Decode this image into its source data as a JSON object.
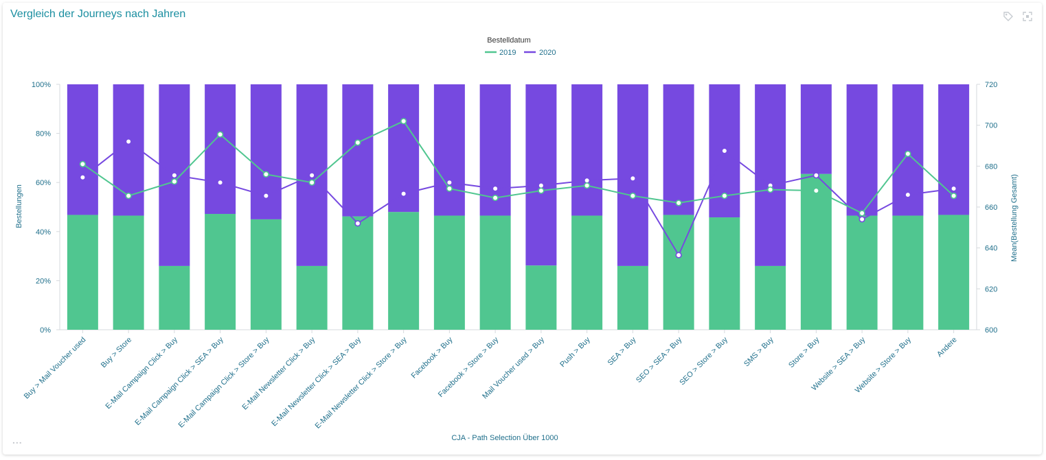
{
  "widget": {
    "title": "Vergleich der Journeys nach Jahren",
    "tag_icon": "tag-icon",
    "expand_icon": "expand-icon",
    "more_icon": "more-options-icon",
    "more_label": "..."
  },
  "chart_data": {
    "type": "bar",
    "stacked": true,
    "combo": "bar-line",
    "legend_title": "Bestelldatum",
    "legend_position": "top-center",
    "xlabel": "CJA - Path Selection Über 1000",
    "ylabel": "Bestellungen",
    "y2label": "Mean(Bestellung Gesamt)",
    "ylim": [
      0,
      100
    ],
    "y2lim": [
      600,
      720
    ],
    "yticks": [
      "0%",
      "20%",
      "40%",
      "60%",
      "80%",
      "100%"
    ],
    "y2ticks": [
      "600",
      "620",
      "640",
      "660",
      "680",
      "700",
      "720"
    ],
    "categories": [
      "Buy > Mail Voucher used",
      "Buy > Store",
      "E-Mail Campaign Click > Buy",
      "E-Mail Campaign Click > SEA > Buy",
      "E-Mail Campaign Click > Store > Buy",
      "E-Mail Newsletter Click > Buy",
      "E-Mail Newsletter Click > SEA > Buy",
      "E-Mail Newsletter Click > Store > Buy",
      "Facebook > Buy",
      "Facebook > Store > Buy",
      "Mail Voucher used > Buy",
      "Push > Buy",
      "SEA > Buy",
      "SEO > SEA > Buy",
      "SEO > Store > Buy",
      "SMS > Buy",
      "Store > Buy",
      "Website > SEA > Buy",
      "Website > Store > Buy",
      "Andere"
    ],
    "series": [
      {
        "name": "2019",
        "color": "#50c690",
        "bar_share": [
          46.8,
          46.5,
          26.0,
          47.2,
          45.0,
          26.0,
          46.2,
          48.0,
          46.5,
          46.5,
          26.2,
          46.5,
          26.0,
          46.8,
          45.8,
          26.0,
          63.5,
          46.5,
          46.5,
          46.8
        ],
        "mean": [
          681,
          665.5,
          672.5,
          695.5,
          676,
          672,
          691.5,
          702,
          669,
          664.5,
          668,
          670.5,
          665.5,
          662,
          665.5,
          668.5,
          668,
          657,
          686,
          665.5
        ]
      },
      {
        "name": "2020",
        "color": "#7649e0",
        "bar_share": [
          53.2,
          53.5,
          74.0,
          52.8,
          55.0,
          74.0,
          53.8,
          52.0,
          53.5,
          53.5,
          73.8,
          53.5,
          74.0,
          53.2,
          54.2,
          74.0,
          36.5,
          53.5,
          53.5,
          53.2
        ],
        "mean": [
          674.5,
          692,
          675.5,
          672,
          665.5,
          675.5,
          652,
          666.5,
          672,
          669,
          670.5,
          673,
          674,
          636.5,
          687.5,
          670.5,
          675.5,
          654,
          666,
          669
        ]
      }
    ],
    "grid": false
  }
}
